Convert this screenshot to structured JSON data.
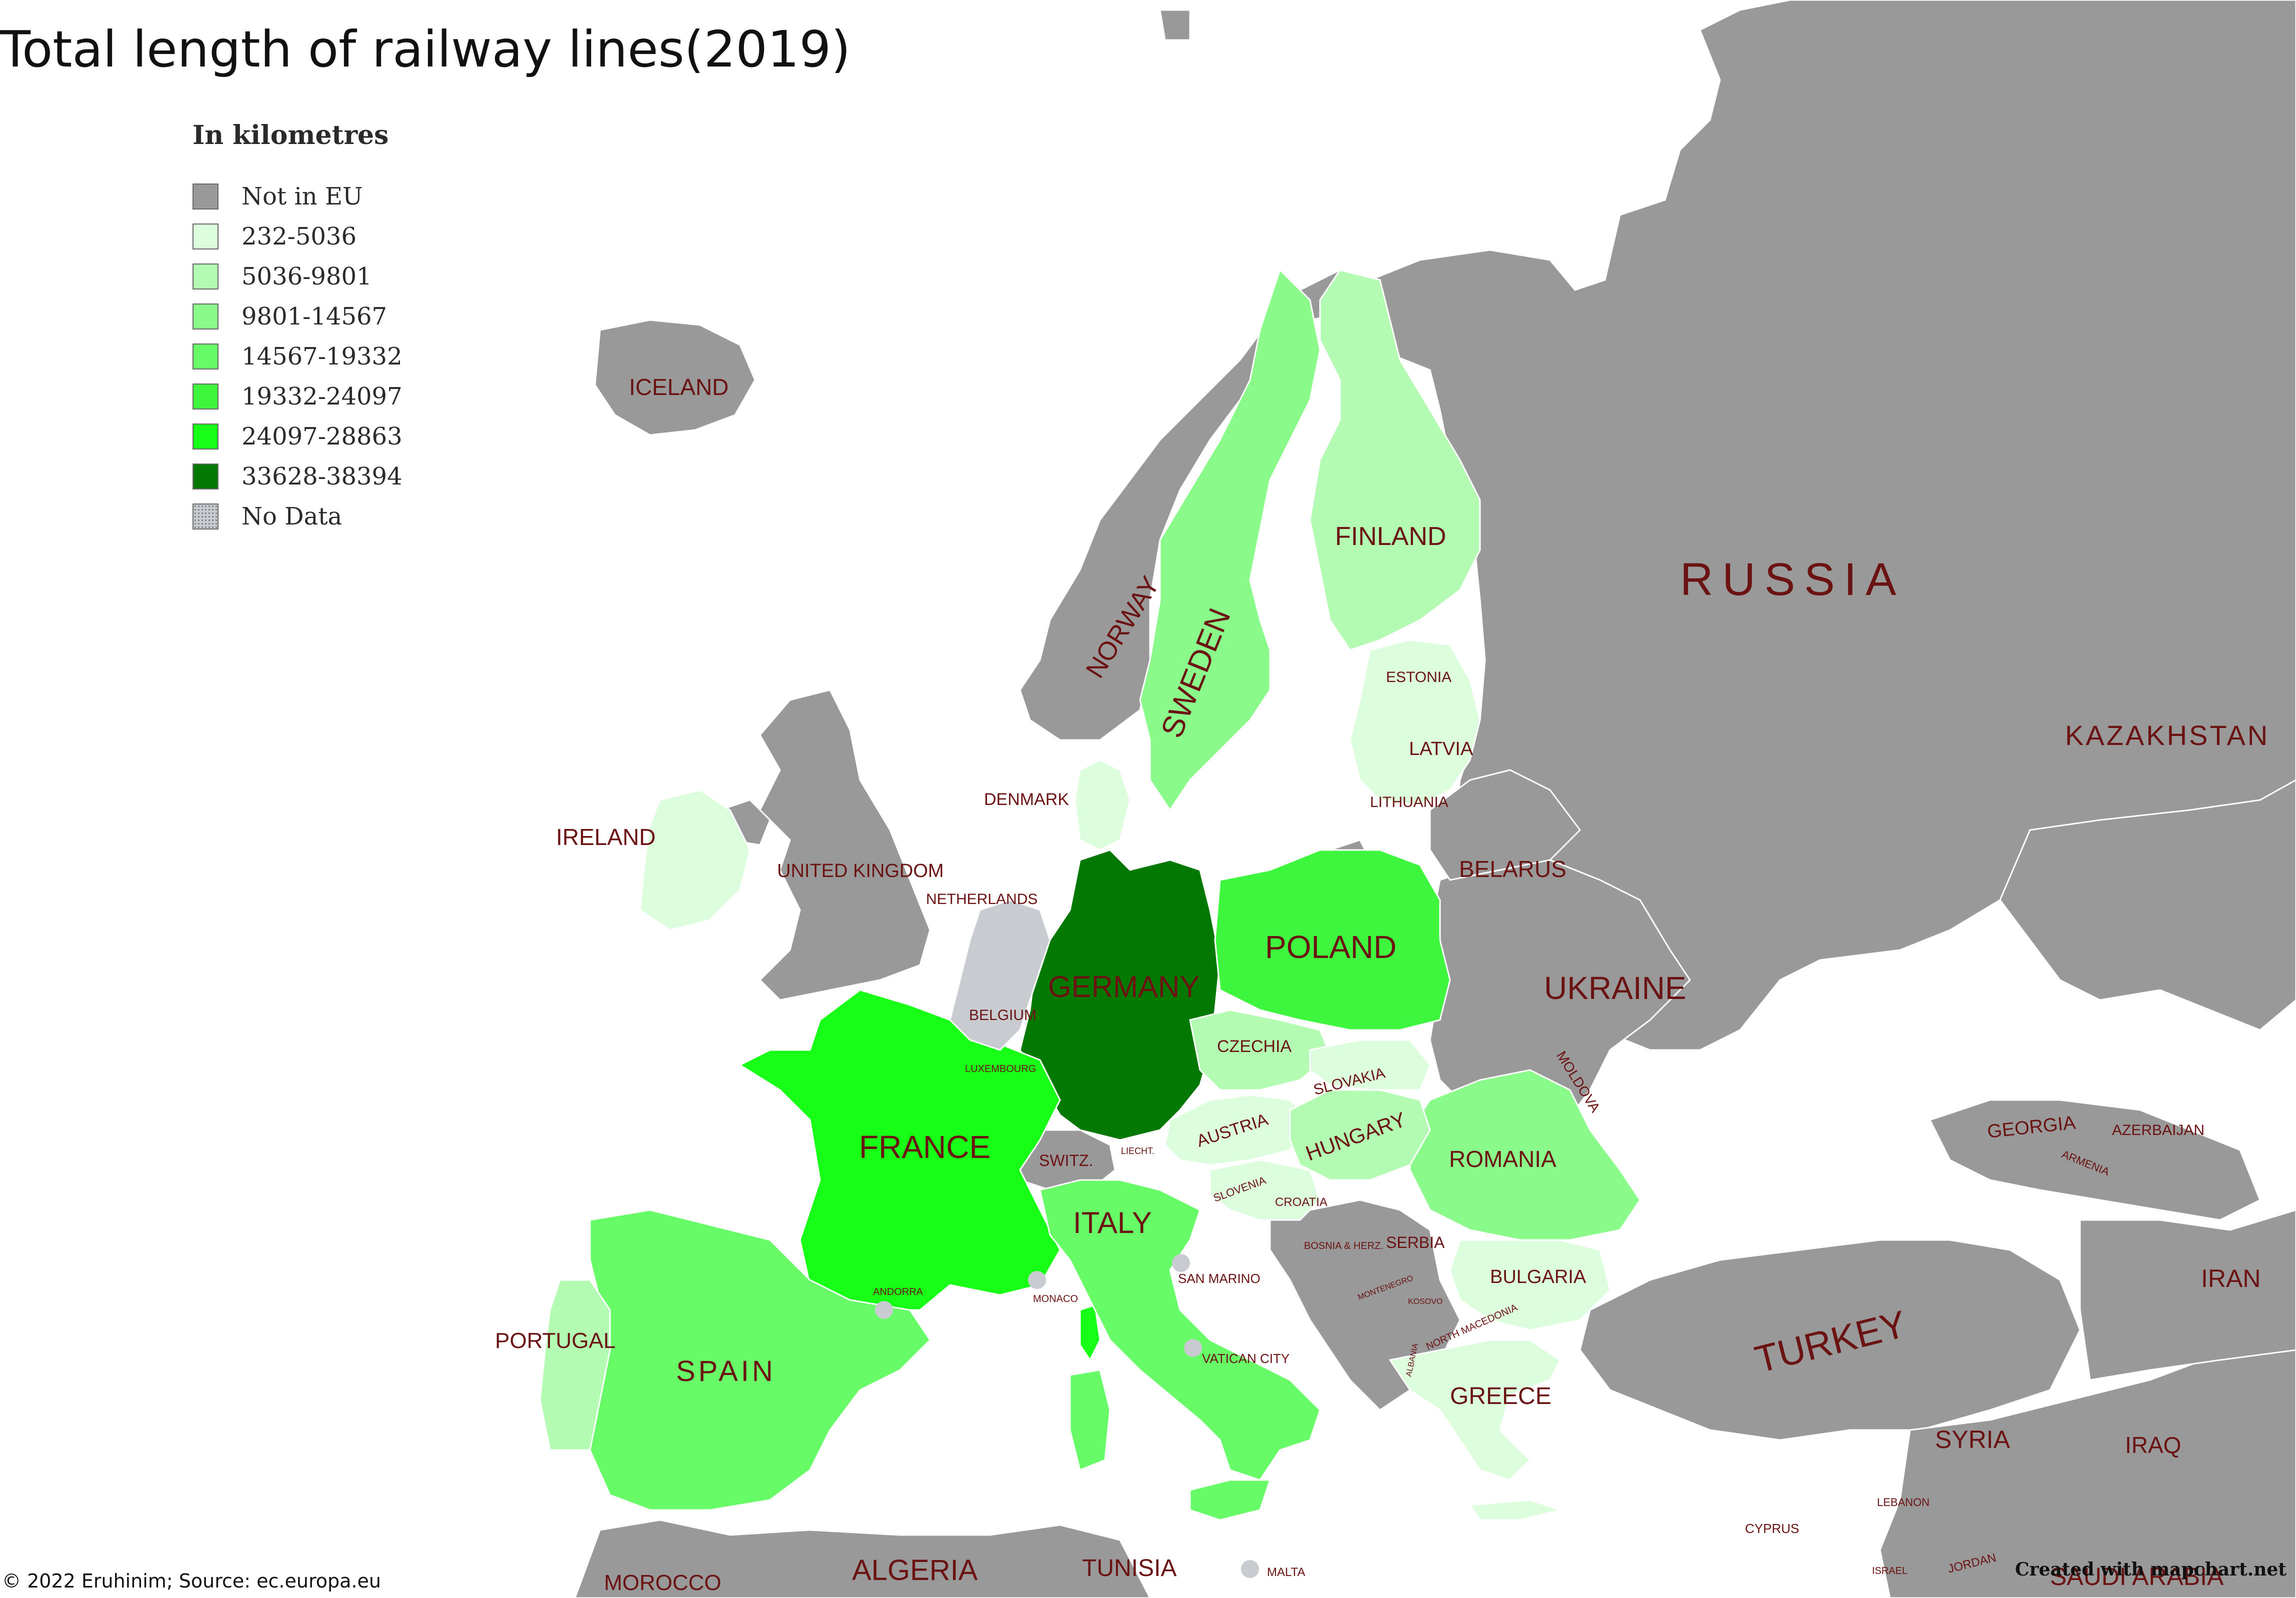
{
  "title": "Total length of railway lines(2019)",
  "legend": {
    "title": "In kilometres",
    "items": [
      {
        "label": "Not in EU",
        "color": "#999999"
      },
      {
        "label": "232-5036",
        "color": "#ddfedd"
      },
      {
        "label": "5036-9801",
        "color": "#b3fbb3"
      },
      {
        "label": "9801-14567",
        "color": "#8afa8a"
      },
      {
        "label": "14567-19332",
        "color": "#68fb68"
      },
      {
        "label": "19332-24097",
        "color": "#3ef63e"
      },
      {
        "label": "24097-28863",
        "color": "#17ff17"
      },
      {
        "label": "33628-38394",
        "color": "#037803"
      },
      {
        "label": "No Data",
        "color": "#c8ccd0"
      }
    ]
  },
  "countries": {
    "iceland": "ICELAND",
    "norway": "NORWAY",
    "sweden": "SWEDEN",
    "finland": "FINLAND",
    "russia": "RUSSIA",
    "kazakhstan": "KAZAKHSTAN",
    "estonia": "ESTONIA",
    "latvia": "LATVIA",
    "lithuania": "LITHUANIA",
    "denmark": "DENMARK",
    "ireland": "IRELAND",
    "uk": "UNITED KINGDOM",
    "netherlands": "NETHERLANDS",
    "belarus": "BELARUS",
    "germany": "GERMANY",
    "poland": "POLAND",
    "ukraine": "UKRAINE",
    "belgium": "BELGIUM",
    "luxembourg": "LUXEMBOURG",
    "czechia": "CZECHIA",
    "slovakia": "SLOVAKIA",
    "moldova": "MOLDOVA",
    "france": "FRANCE",
    "austria": "AUSTRIA",
    "hungary": "HUNGARY",
    "romania": "ROMANIA",
    "georgia": "GEORGIA",
    "azerbaijan": "AZERBAIJAN",
    "armenia": "ARMENIA",
    "switzerland": "SWITZ.",
    "liechtenstein": "LIECHT.",
    "italy": "ITALY",
    "slovenia": "SLOVENIA",
    "croatia": "CROATIA",
    "bosnia": "BOSNIA & HERZ.",
    "serbia": "SERBIA",
    "montenegro": "MONTENEGRO",
    "kosovo": "KOSOVO",
    "bulgaria": "BULGARIA",
    "north_macedonia": "NORTH MACEDONIA",
    "albania": "ALBANIA",
    "san_marino": "SAN MARINO",
    "andorra": "ANDORRA",
    "monaco": "MONACO",
    "portugal": "PORTUGAL",
    "spain": "SPAIN",
    "vatican": "VATICAN CITY",
    "greece": "GREECE",
    "turkey": "TURKEY",
    "iran": "IRAN",
    "syria": "SYRIA",
    "iraq": "IRAQ",
    "lebanon": "LEBANON",
    "cyprus": "CYPRUS",
    "israel": "ISRAEL",
    "jordan": "JORDAN",
    "saudi_arabia": "SAUDI ARABIA",
    "morocco": "MOROCCO",
    "algeria": "ALGERIA",
    "tunisia": "TUNISIA",
    "malta": "MALTA"
  },
  "credit": "© 2022 Eruhinim; Source: ec.europa.eu",
  "watermark": "Created with mapchart.net"
}
